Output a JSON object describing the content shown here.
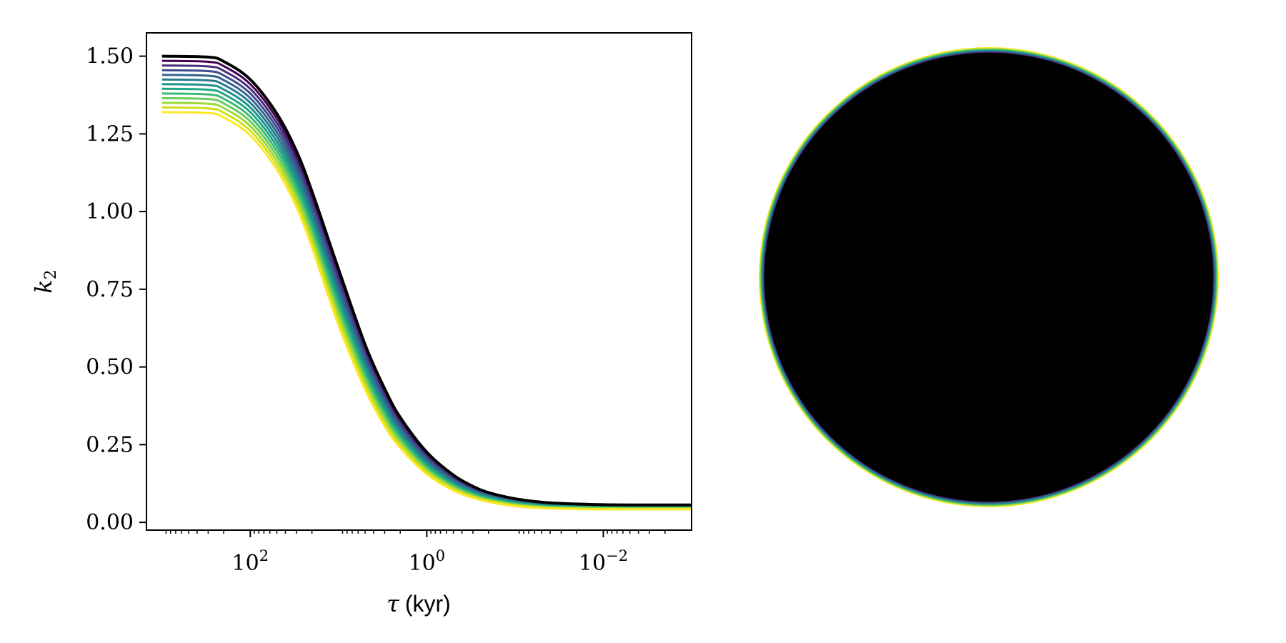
{
  "chart_data": [
    {
      "type": "line",
      "xlabel_symbol": "τ",
      "xlabel_unit": "(kyr)",
      "ylabel_symbol": "k",
      "ylabel_sub": "2",
      "x_scale": "log",
      "x_direction": "reversed",
      "xlim": [
        1500,
        0.001
      ],
      "ylim": [
        -0.025,
        1.575
      ],
      "x_ticks": [
        {
          "value": 100,
          "base": "10",
          "exp": "2"
        },
        {
          "value": 1,
          "base": "10",
          "exp": "0"
        },
        {
          "value": 0.01,
          "base": "10",
          "exp": "−2"
        }
      ],
      "y_ticks": [
        {
          "value": 0.0,
          "label": "0.00"
        },
        {
          "value": 0.25,
          "label": "0.25"
        },
        {
          "value": 0.5,
          "label": "0.50"
        },
        {
          "value": 0.75,
          "label": "0.75"
        },
        {
          "value": 1.0,
          "label": "1.00"
        },
        {
          "value": 1.25,
          "label": "1.25"
        },
        {
          "value": 1.5,
          "label": "1.50"
        }
      ],
      "grid": false,
      "x": [
        1000,
        300,
        200,
        100,
        50,
        30,
        20,
        10,
        5,
        3,
        2,
        1,
        0.5,
        0.3,
        0.2,
        0.1,
        0.05,
        0.03,
        0.01,
        0.003,
        0.001
      ],
      "series": [
        {
          "color": "#440154",
          "values": [
            1.485,
            1.482,
            1.468,
            1.41,
            1.3,
            1.18,
            1.05,
            0.8,
            0.56,
            0.42,
            0.33,
            0.22,
            0.148,
            0.113,
            0.094,
            0.074,
            0.063,
            0.059,
            0.055,
            0.054,
            0.054
          ]
        },
        {
          "color": "#472c7a",
          "values": [
            1.47,
            1.467,
            1.453,
            1.395,
            1.285,
            1.165,
            1.035,
            0.785,
            0.548,
            0.41,
            0.32,
            0.213,
            0.143,
            0.109,
            0.091,
            0.072,
            0.061,
            0.057,
            0.054,
            0.053,
            0.053
          ]
        },
        {
          "color": "#3e4c8a",
          "values": [
            1.455,
            1.452,
            1.438,
            1.38,
            1.27,
            1.15,
            1.02,
            0.77,
            0.536,
            0.4,
            0.312,
            0.207,
            0.139,
            0.106,
            0.088,
            0.07,
            0.06,
            0.056,
            0.053,
            0.052,
            0.052
          ]
        },
        {
          "color": "#32658e",
          "values": [
            1.44,
            1.437,
            1.423,
            1.365,
            1.255,
            1.135,
            1.005,
            0.755,
            0.524,
            0.39,
            0.304,
            0.201,
            0.135,
            0.103,
            0.086,
            0.068,
            0.058,
            0.054,
            0.052,
            0.051,
            0.051
          ]
        },
        {
          "color": "#277c8e",
          "values": [
            1.425,
            1.422,
            1.408,
            1.35,
            1.24,
            1.12,
            0.99,
            0.74,
            0.512,
            0.38,
            0.296,
            0.195,
            0.131,
            0.1,
            0.083,
            0.066,
            0.057,
            0.053,
            0.05,
            0.05,
            0.05
          ]
        },
        {
          "color": "#1f928c",
          "values": [
            1.41,
            1.407,
            1.393,
            1.335,
            1.225,
            1.105,
            0.975,
            0.725,
            0.5,
            0.37,
            0.288,
            0.19,
            0.127,
            0.097,
            0.081,
            0.064,
            0.055,
            0.052,
            0.049,
            0.049,
            0.049
          ]
        },
        {
          "color": "#21a685",
          "values": [
            1.395,
            1.392,
            1.378,
            1.32,
            1.21,
            1.09,
            0.96,
            0.71,
            0.488,
            0.36,
            0.28,
            0.184,
            0.123,
            0.094,
            0.078,
            0.062,
            0.053,
            0.05,
            0.048,
            0.047,
            0.047
          ]
        },
        {
          "color": "#3bbb75",
          "values": [
            1.38,
            1.377,
            1.363,
            1.305,
            1.195,
            1.075,
            0.945,
            0.695,
            0.476,
            0.35,
            0.272,
            0.178,
            0.119,
            0.091,
            0.076,
            0.06,
            0.052,
            0.049,
            0.047,
            0.046,
            0.046
          ]
        },
        {
          "color": "#69cd5b",
          "values": [
            1.365,
            1.362,
            1.348,
            1.29,
            1.18,
            1.06,
            0.93,
            0.68,
            0.464,
            0.34,
            0.264,
            0.172,
            0.115,
            0.088,
            0.073,
            0.058,
            0.05,
            0.047,
            0.045,
            0.045,
            0.045
          ]
        },
        {
          "color": "#9dd93b",
          "values": [
            1.35,
            1.347,
            1.333,
            1.275,
            1.165,
            1.045,
            0.915,
            0.665,
            0.452,
            0.33,
            0.256,
            0.167,
            0.111,
            0.085,
            0.071,
            0.056,
            0.049,
            0.046,
            0.044,
            0.044,
            0.044
          ]
        },
        {
          "color": "#d0e11c",
          "values": [
            1.335,
            1.332,
            1.318,
            1.26,
            1.15,
            1.03,
            0.9,
            0.65,
            0.44,
            0.32,
            0.248,
            0.161,
            0.107,
            0.082,
            0.068,
            0.054,
            0.047,
            0.045,
            0.043,
            0.043,
            0.043
          ]
        },
        {
          "color": "#fde725",
          "values": [
            1.32,
            1.317,
            1.303,
            1.245,
            1.135,
            1.015,
            0.885,
            0.635,
            0.428,
            0.31,
            0.24,
            0.155,
            0.103,
            0.079,
            0.066,
            0.052,
            0.046,
            0.044,
            0.042,
            0.042,
            0.042
          ]
        },
        {
          "color": "#000000",
          "values": [
            1.5,
            1.497,
            1.483,
            1.425,
            1.315,
            1.195,
            1.065,
            0.815,
            0.572,
            0.43,
            0.338,
            0.226,
            0.152,
            0.116,
            0.096,
            0.076,
            0.065,
            0.061,
            0.057,
            0.056,
            0.056
          ]
        }
      ]
    },
    {
      "type": "other",
      "description_visible": "concentric rings disk",
      "rings": [
        {
          "fraction": 1.0,
          "color": "#fde725"
        },
        {
          "fraction": 0.996,
          "color": "#9dd93b"
        },
        {
          "fraction": 0.992,
          "color": "#3bbb75"
        },
        {
          "fraction": 0.988,
          "color": "#1f928c"
        },
        {
          "fraction": 0.984,
          "color": "#32658e"
        },
        {
          "fraction": 0.98,
          "color": "#472c7a"
        },
        {
          "fraction": 0.976,
          "color": "#000000"
        }
      ]
    }
  ]
}
